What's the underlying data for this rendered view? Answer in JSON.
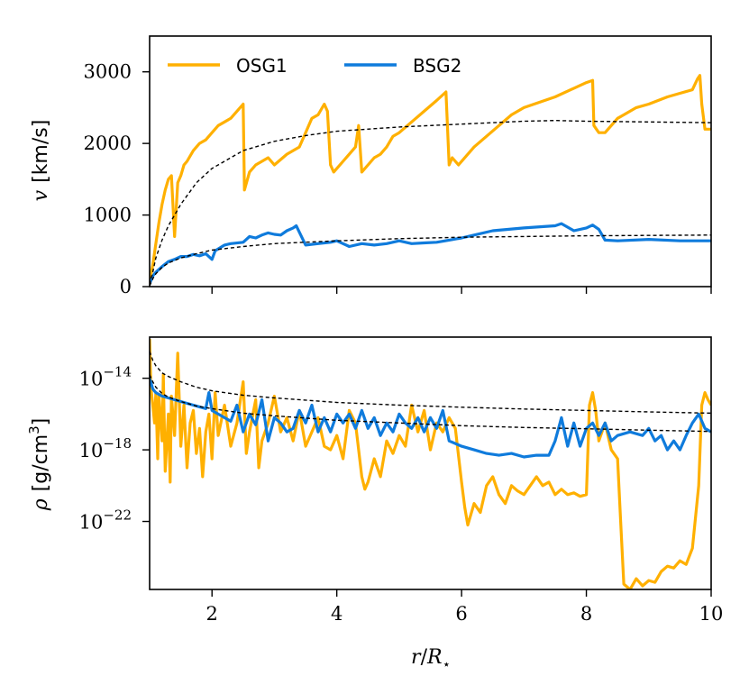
{
  "chart_data": [
    {
      "type": "line",
      "panel": "top",
      "ylabel": "v [km/s]",
      "ylabel_var": "v",
      "ylabel_unit": "[km/s]",
      "xlim": [
        1,
        10
      ],
      "ylim": [
        0,
        3500
      ],
      "y_ticks": [
        0,
        1000,
        2000,
        3000
      ],
      "y_tick_labels": [
        "0",
        "1000",
        "2000",
        "3000"
      ],
      "x_ticks": [
        2,
        4,
        6,
        8,
        10
      ],
      "x_tick_labels_visible": false,
      "grid": false,
      "legend": {
        "placement": "top-left",
        "entries": [
          "OSG1",
          "BSG2"
        ]
      },
      "series": [
        {
          "name": "OSG1",
          "color": "#ffb000",
          "style": "solid",
          "x": [
            1.0,
            1.05,
            1.1,
            1.15,
            1.2,
            1.25,
            1.3,
            1.35,
            1.4,
            1.45,
            1.5,
            1.55,
            1.6,
            1.7,
            1.8,
            1.9,
            2.0,
            2.1,
            2.2,
            2.3,
            2.4,
            2.5,
            2.52,
            2.6,
            2.7,
            2.8,
            2.9,
            3.0,
            3.2,
            3.4,
            3.5,
            3.6,
            3.7,
            3.8,
            3.85,
            3.9,
            3.95,
            4.0,
            4.1,
            4.2,
            4.3,
            4.35,
            4.4,
            4.5,
            4.6,
            4.7,
            4.8,
            4.9,
            5.0,
            5.2,
            5.4,
            5.6,
            5.75,
            5.8,
            5.85,
            5.95,
            6.2,
            6.4,
            6.6,
            6.8,
            7.0,
            7.5,
            8.0,
            8.1,
            8.12,
            8.2,
            8.3,
            8.5,
            8.6,
            8.7,
            8.8,
            9.0,
            9.3,
            9.5,
            9.7,
            9.78,
            9.82,
            9.85,
            9.9,
            10.0
          ],
          "values": [
            80,
            300,
            600,
            900,
            1150,
            1350,
            1500,
            1550,
            700,
            1450,
            1550,
            1700,
            1750,
            1900,
            2000,
            2050,
            2150,
            2250,
            2300,
            2350,
            2450,
            2550,
            1350,
            1600,
            1700,
            1750,
            1800,
            1700,
            1850,
            1950,
            2150,
            2350,
            2400,
            2550,
            2450,
            1700,
            1600,
            1650,
            1750,
            1850,
            1950,
            2250,
            1600,
            1700,
            1800,
            1850,
            1950,
            2100,
            2150,
            2300,
            2450,
            2600,
            2720,
            1700,
            1800,
            1700,
            1950,
            2100,
            2250,
            2400,
            2500,
            2650,
            2850,
            2880,
            2250,
            2150,
            2150,
            2350,
            2400,
            2450,
            2500,
            2550,
            2650,
            2700,
            2750,
            2900,
            2950,
            2550,
            2200,
            2200
          ]
        },
        {
          "name": "BSG2",
          "color": "#0f7bdc",
          "style": "solid",
          "x": [
            1.0,
            1.05,
            1.1,
            1.2,
            1.3,
            1.4,
            1.5,
            1.6,
            1.7,
            1.8,
            1.9,
            2.0,
            2.05,
            2.2,
            2.3,
            2.5,
            2.6,
            2.7,
            2.8,
            2.9,
            3.0,
            3.1,
            3.2,
            3.3,
            3.35,
            3.4,
            3.5,
            3.7,
            3.9,
            4.0,
            4.2,
            4.4,
            4.6,
            4.8,
            5.0,
            5.2,
            5.4,
            5.6,
            5.8,
            6.0,
            6.2,
            6.5,
            7.0,
            7.5,
            7.6,
            7.8,
            8.0,
            8.1,
            8.2,
            8.3,
            8.5,
            9.0,
            9.5,
            10.0
          ],
          "values": [
            40,
            150,
            200,
            280,
            350,
            380,
            420,
            420,
            450,
            430,
            460,
            380,
            500,
            580,
            600,
            620,
            700,
            680,
            720,
            750,
            730,
            720,
            780,
            820,
            850,
            760,
            580,
            600,
            620,
            640,
            560,
            600,
            580,
            600,
            640,
            600,
            610,
            620,
            650,
            680,
            720,
            780,
            820,
            850,
            880,
            780,
            820,
            860,
            800,
            650,
            640,
            660,
            640,
            640
          ]
        },
        {
          "name": "",
          "color": "#000000",
          "style": "dashed",
          "x": [
            1.0,
            1.05,
            1.1,
            1.2,
            1.3,
            1.5,
            1.75,
            2.0,
            2.5,
            3.0,
            3.5,
            4.0,
            5.0,
            6.0,
            7.0,
            7.5,
            8.0,
            9.0,
            10.0
          ],
          "values": [
            30,
            200,
            400,
            650,
            850,
            1150,
            1450,
            1650,
            1900,
            2030,
            2110,
            2170,
            2230,
            2270,
            2310,
            2320,
            2310,
            2300,
            2290
          ]
        },
        {
          "name": "",
          "color": "#000000",
          "style": "dashed",
          "x": [
            1.0,
            1.05,
            1.1,
            1.2,
            1.3,
            1.5,
            1.75,
            2.0,
            2.5,
            3.0,
            4.0,
            5.0,
            6.0,
            7.0,
            8.0,
            9.0,
            10.0
          ],
          "values": [
            10,
            110,
            180,
            270,
            330,
            400,
            460,
            510,
            560,
            600,
            640,
            670,
            690,
            700,
            710,
            715,
            720
          ]
        }
      ]
    },
    {
      "type": "line",
      "panel": "bottom",
      "ylabel": "ρ [g/cm³]",
      "ylabel_var": "ρ",
      "ylabel_unit_base": "[g/cm",
      "ylabel_unit_sup": "3",
      "ylabel_unit_close": "]",
      "xlabel_var": "r",
      "xlabel_sep": "/",
      "xlabel_base": "R",
      "xlabel_sub": "⋆",
      "xlim": [
        1,
        10
      ],
      "ylim_log10": [
        -25.8,
        -11.7
      ],
      "log_scale": true,
      "y_ticks_log10": [
        -14,
        -18,
        -22
      ],
      "y_tick_base": "10",
      "y_tick_exponents": [
        "−14",
        "−18",
        "−22"
      ],
      "x_ticks": [
        2,
        4,
        6,
        8,
        10
      ],
      "x_tick_labels": [
        "2",
        "4",
        "6",
        "8",
        "10"
      ],
      "grid": false,
      "series": [
        {
          "name": "OSG1",
          "color": "#ffb000",
          "style": "solid",
          "x": [
            1.0,
            1.02,
            1.05,
            1.08,
            1.1,
            1.13,
            1.15,
            1.2,
            1.22,
            1.25,
            1.3,
            1.33,
            1.35,
            1.4,
            1.45,
            1.5,
            1.55,
            1.6,
            1.65,
            1.7,
            1.75,
            1.8,
            1.85,
            1.9,
            1.95,
            2.0,
            2.05,
            2.1,
            2.2,
            2.3,
            2.4,
            2.5,
            2.55,
            2.6,
            2.7,
            2.75,
            2.8,
            2.9,
            3.0,
            3.1,
            3.2,
            3.3,
            3.4,
            3.5,
            3.6,
            3.7,
            3.8,
            3.9,
            4.0,
            4.1,
            4.2,
            4.3,
            4.4,
            4.45,
            4.5,
            4.6,
            4.7,
            4.8,
            4.9,
            5.0,
            5.1,
            5.2,
            5.3,
            5.4,
            5.5,
            5.6,
            5.7,
            5.8,
            5.9,
            6.0,
            6.05,
            6.1,
            6.2,
            6.3,
            6.4,
            6.5,
            6.6,
            6.7,
            6.8,
            6.9,
            7.0,
            7.1,
            7.2,
            7.3,
            7.4,
            7.5,
            7.6,
            7.7,
            7.8,
            7.9,
            8.0,
            8.05,
            8.1,
            8.15,
            8.2,
            8.3,
            8.4,
            8.5,
            8.55,
            8.6,
            8.7,
            8.8,
            8.9,
            9.0,
            9.1,
            9.2,
            9.3,
            9.4,
            9.5,
            9.6,
            9.7,
            9.8,
            9.85,
            9.9,
            9.95,
            10.0
          ],
          "values_log10": [
            -11.8,
            -14.5,
            -15.5,
            -16.5,
            -14.8,
            -18.5,
            -15.0,
            -17.5,
            -13.8,
            -19.2,
            -16.0,
            -19.8,
            -15.0,
            -17.2,
            -12.6,
            -17.8,
            -15.5,
            -19.0,
            -16.5,
            -15.8,
            -18.2,
            -16.8,
            -19.5,
            -17.0,
            -16.0,
            -18.5,
            -14.8,
            -17.2,
            -15.5,
            -17.8,
            -16.5,
            -14.2,
            -18.2,
            -17.0,
            -15.2,
            -19.0,
            -17.5,
            -16.5,
            -15.0,
            -17.0,
            -16.2,
            -17.5,
            -15.8,
            -17.8,
            -17.0,
            -16.2,
            -17.8,
            -18.0,
            -17.2,
            -18.5,
            -15.8,
            -16.5,
            -19.5,
            -20.2,
            -19.8,
            -18.5,
            -19.5,
            -17.5,
            -18.2,
            -17.2,
            -17.8,
            -15.5,
            -17.0,
            -15.8,
            -18.0,
            -16.5,
            -17.0,
            -16.2,
            -16.8,
            -19.8,
            -21.2,
            -22.2,
            -21.0,
            -21.5,
            -20.0,
            -19.5,
            -20.5,
            -21.0,
            -20.0,
            -20.3,
            -20.5,
            -20.0,
            -19.5,
            -20.0,
            -19.8,
            -20.5,
            -20.2,
            -20.5,
            -20.4,
            -20.6,
            -20.5,
            -15.5,
            -14.8,
            -15.8,
            -17.5,
            -16.5,
            -18.0,
            -18.5,
            -22.0,
            -25.5,
            -25.8,
            -25.2,
            -25.6,
            -25.3,
            -25.4,
            -24.8,
            -24.5,
            -24.6,
            -24.2,
            -24.4,
            -23.5,
            -20.0,
            -15.5,
            -14.8,
            -15.2,
            -15.5
          ]
        },
        {
          "name": "BSG2",
          "color": "#0f7bdc",
          "style": "solid",
          "x": [
            1.0,
            1.05,
            1.1,
            1.2,
            1.3,
            1.4,
            1.5,
            1.6,
            1.7,
            1.8,
            1.9,
            1.95,
            2.0,
            2.1,
            2.2,
            2.3,
            2.4,
            2.5,
            2.6,
            2.7,
            2.8,
            2.9,
            3.0,
            3.1,
            3.2,
            3.3,
            3.4,
            3.5,
            3.6,
            3.7,
            3.8,
            3.9,
            4.0,
            4.1,
            4.2,
            4.3,
            4.4,
            4.5,
            4.6,
            4.7,
            4.8,
            4.9,
            5.0,
            5.1,
            5.2,
            5.3,
            5.4,
            5.5,
            5.6,
            5.7,
            5.8,
            6.0,
            6.2,
            6.4,
            6.6,
            6.8,
            7.0,
            7.2,
            7.4,
            7.5,
            7.6,
            7.7,
            7.8,
            7.9,
            8.0,
            8.1,
            8.2,
            8.3,
            8.4,
            8.5,
            8.7,
            8.9,
            9.0,
            9.1,
            9.2,
            9.3,
            9.4,
            9.5,
            9.6,
            9.7,
            9.8,
            9.9,
            10.0
          ],
          "values_log10": [
            -14.0,
            -14.6,
            -14.8,
            -15.0,
            -15.1,
            -15.2,
            -15.3,
            -15.4,
            -15.5,
            -15.6,
            -15.7,
            -14.8,
            -15.8,
            -16.0,
            -16.2,
            -16.4,
            -15.5,
            -17.0,
            -16.0,
            -16.6,
            -15.2,
            -17.5,
            -16.2,
            -16.5,
            -17.0,
            -16.8,
            -15.8,
            -16.5,
            -15.5,
            -17.0,
            -16.2,
            -17.0,
            -16.0,
            -16.5,
            -16.0,
            -16.8,
            -15.8,
            -16.8,
            -16.2,
            -17.2,
            -16.5,
            -17.0,
            -16.0,
            -16.5,
            -16.8,
            -16.2,
            -17.0,
            -16.2,
            -16.8,
            -15.8,
            -17.5,
            -17.8,
            -18.0,
            -18.2,
            -18.3,
            -18.2,
            -18.4,
            -18.3,
            -18.3,
            -17.5,
            -16.2,
            -17.8,
            -16.5,
            -17.8,
            -16.8,
            -16.5,
            -17.2,
            -16.5,
            -17.5,
            -17.2,
            -17.0,
            -17.2,
            -16.8,
            -17.5,
            -17.2,
            -18.0,
            -17.5,
            -18.0,
            -17.2,
            -16.5,
            -16.0,
            -16.8,
            -17.0
          ]
        },
        {
          "name": "",
          "color": "#000000",
          "style": "dashed",
          "x": [
            1.0,
            1.05,
            1.1,
            1.2,
            1.3,
            1.5,
            1.75,
            2.0,
            2.5,
            3.0,
            4.0,
            5.0,
            6.0,
            7.0,
            8.0,
            9.0,
            10.0
          ],
          "values_log10": [
            -12.5,
            -13.0,
            -13.3,
            -13.7,
            -13.9,
            -14.2,
            -14.5,
            -14.7,
            -14.95,
            -15.1,
            -15.35,
            -15.5,
            -15.62,
            -15.72,
            -15.8,
            -15.88,
            -15.95
          ]
        },
        {
          "name": "",
          "color": "#000000",
          "style": "dashed",
          "x": [
            1.0,
            1.05,
            1.1,
            1.2,
            1.3,
            1.5,
            1.75,
            2.0,
            2.5,
            3.0,
            4.0,
            5.0,
            6.0,
            7.0,
            8.0,
            9.0,
            10.0
          ],
          "values_log10": [
            -13.8,
            -14.2,
            -14.5,
            -14.85,
            -15.05,
            -15.3,
            -15.55,
            -15.7,
            -15.95,
            -16.1,
            -16.35,
            -16.5,
            -16.65,
            -16.75,
            -16.82,
            -16.9,
            -16.97
          ]
        }
      ]
    }
  ]
}
